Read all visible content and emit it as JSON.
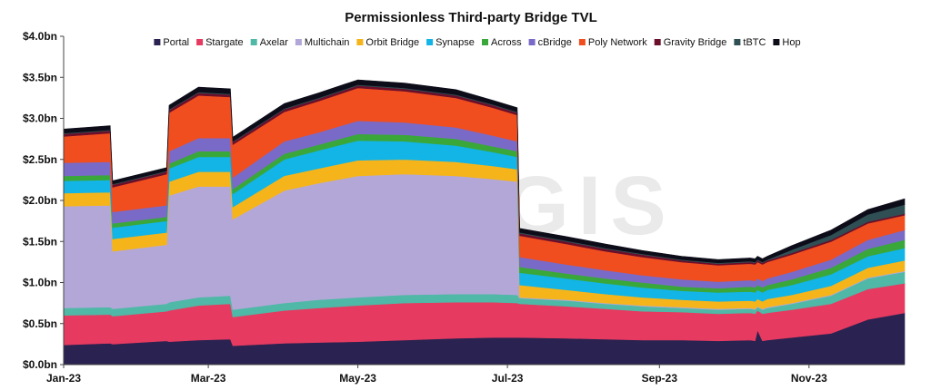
{
  "chart_data": {
    "type": "area",
    "stacked": true,
    "title": "Permissionless Third-party Bridge TVL",
    "xlabel": "",
    "ylabel": "",
    "watermark": "CREGIS",
    "ylim": [
      0,
      4.0
    ],
    "yticks": [
      {
        "value": 0.0,
        "label": "$0.0bn"
      },
      {
        "value": 0.5,
        "label": "$0.5bn"
      },
      {
        "value": 1.0,
        "label": "$1.0bn"
      },
      {
        "value": 1.5,
        "label": "$1.5bn"
      },
      {
        "value": 2.0,
        "label": "$2.0bn"
      },
      {
        "value": 2.5,
        "label": "$2.5bn"
      },
      {
        "value": 3.0,
        "label": "$3.0bn"
      },
      {
        "value": 3.5,
        "label": "$3.5bn"
      },
      {
        "value": 4.0,
        "label": "$4.0bn"
      }
    ],
    "xticks": [
      {
        "x": "2023-01-01",
        "label": "Jan-23"
      },
      {
        "x": "2023-03-01",
        "label": "Mar-23"
      },
      {
        "x": "2023-05-01",
        "label": "May-23"
      },
      {
        "x": "2023-07-01",
        "label": "Jul-23"
      },
      {
        "x": "2023-09-01",
        "label": "Sep-23"
      },
      {
        "x": "2023-11-01",
        "label": "Nov-23"
      }
    ],
    "xlim": [
      "2023-01-01",
      "2023-12-10"
    ],
    "legend_position": "top",
    "grid": false,
    "x": [
      "2023-01-01",
      "2023-01-20",
      "2023-01-21",
      "2023-02-12",
      "2023-02-13",
      "2023-02-25",
      "2023-03-10",
      "2023-03-11",
      "2023-04-01",
      "2023-04-15",
      "2023-05-01",
      "2023-05-20",
      "2023-06-10",
      "2023-06-25",
      "2023-07-05",
      "2023-07-06",
      "2023-07-25",
      "2023-08-10",
      "2023-08-25",
      "2023-09-10",
      "2023-09-25",
      "2023-10-08",
      "2023-10-10",
      "2023-10-11",
      "2023-10-13",
      "2023-10-15",
      "2023-10-25",
      "2023-11-10",
      "2023-11-25",
      "2023-12-10"
    ],
    "series": [
      {
        "name": "Portal",
        "color": "#2a2250",
        "values": [
          0.24,
          0.26,
          0.25,
          0.29,
          0.28,
          0.3,
          0.31,
          0.23,
          0.26,
          0.27,
          0.28,
          0.3,
          0.32,
          0.33,
          0.33,
          0.33,
          0.32,
          0.31,
          0.3,
          0.3,
          0.29,
          0.3,
          0.29,
          0.42,
          0.29,
          0.3,
          0.33,
          0.38,
          0.55,
          0.63
        ]
      },
      {
        "name": "Stargate",
        "color": "#e63a60",
        "values": [
          0.36,
          0.35,
          0.34,
          0.36,
          0.38,
          0.42,
          0.43,
          0.35,
          0.4,
          0.42,
          0.44,
          0.45,
          0.44,
          0.43,
          0.42,
          0.41,
          0.39,
          0.37,
          0.35,
          0.34,
          0.33,
          0.33,
          0.33,
          0.24,
          0.33,
          0.33,
          0.34,
          0.36,
          0.37,
          0.36
        ]
      },
      {
        "name": "Axelar",
        "color": "#4fb8a6",
        "values": [
          0.09,
          0.09,
          0.09,
          0.09,
          0.1,
          0.1,
          0.1,
          0.09,
          0.09,
          0.1,
          0.1,
          0.1,
          0.1,
          0.1,
          0.1,
          0.07,
          0.07,
          0.06,
          0.06,
          0.05,
          0.05,
          0.05,
          0.05,
          0.04,
          0.05,
          0.06,
          0.07,
          0.1,
          0.13,
          0.14
        ]
      },
      {
        "name": "Multichain",
        "color": "#b3a7d8",
        "values": [
          1.24,
          1.24,
          0.7,
          0.72,
          1.3,
          1.35,
          1.33,
          1.1,
          1.37,
          1.42,
          1.48,
          1.47,
          1.44,
          1.4,
          1.38,
          0.01,
          0.01,
          0.01,
          0.01,
          0.01,
          0.01,
          0.01,
          0.01,
          0.01,
          0.01,
          0.01,
          0.01,
          0.01,
          0.01,
          0.01
        ]
      },
      {
        "name": "Orbit Bridge",
        "color": "#f5b51a",
        "values": [
          0.16,
          0.16,
          0.15,
          0.15,
          0.17,
          0.18,
          0.18,
          0.15,
          0.18,
          0.18,
          0.19,
          0.18,
          0.17,
          0.16,
          0.15,
          0.15,
          0.12,
          0.11,
          0.1,
          0.09,
          0.09,
          0.09,
          0.09,
          0.09,
          0.09,
          0.1,
          0.1,
          0.11,
          0.12,
          0.13
        ]
      },
      {
        "name": "Synapse",
        "color": "#13b4e6",
        "values": [
          0.15,
          0.15,
          0.14,
          0.14,
          0.16,
          0.18,
          0.18,
          0.16,
          0.2,
          0.22,
          0.24,
          0.22,
          0.2,
          0.17,
          0.15,
          0.15,
          0.14,
          0.13,
          0.12,
          0.11,
          0.11,
          0.11,
          0.11,
          0.11,
          0.11,
          0.11,
          0.12,
          0.14,
          0.14,
          0.15
        ]
      },
      {
        "name": "Across",
        "color": "#3aa73a",
        "values": [
          0.06,
          0.06,
          0.05,
          0.05,
          0.06,
          0.07,
          0.07,
          0.06,
          0.07,
          0.07,
          0.08,
          0.08,
          0.08,
          0.07,
          0.07,
          0.07,
          0.06,
          0.06,
          0.06,
          0.05,
          0.05,
          0.06,
          0.06,
          0.06,
          0.06,
          0.06,
          0.07,
          0.08,
          0.09,
          0.1
        ]
      },
      {
        "name": "cBridge",
        "color": "#7a6ac8",
        "values": [
          0.16,
          0.16,
          0.14,
          0.14,
          0.15,
          0.16,
          0.16,
          0.14,
          0.15,
          0.15,
          0.16,
          0.15,
          0.14,
          0.13,
          0.12,
          0.12,
          0.11,
          0.1,
          0.09,
          0.09,
          0.08,
          0.08,
          0.08,
          0.08,
          0.08,
          0.08,
          0.09,
          0.1,
          0.11,
          0.12
        ]
      },
      {
        "name": "Poly Network",
        "color": "#f04e1f",
        "values": [
          0.32,
          0.35,
          0.3,
          0.38,
          0.47,
          0.52,
          0.5,
          0.4,
          0.36,
          0.38,
          0.4,
          0.38,
          0.36,
          0.34,
          0.32,
          0.26,
          0.25,
          0.23,
          0.22,
          0.21,
          0.2,
          0.2,
          0.2,
          0.2,
          0.2,
          0.2,
          0.21,
          0.22,
          0.2,
          0.18
        ]
      },
      {
        "name": "Gravity Bridge",
        "color": "#6b0f2a",
        "values": [
          0.03,
          0.03,
          0.03,
          0.03,
          0.03,
          0.03,
          0.03,
          0.03,
          0.03,
          0.03,
          0.03,
          0.03,
          0.03,
          0.03,
          0.03,
          0.03,
          0.03,
          0.03,
          0.03,
          0.02,
          0.02,
          0.02,
          0.02,
          0.02,
          0.02,
          0.02,
          0.02,
          0.02,
          0.02,
          0.02
        ]
      },
      {
        "name": "tBTC",
        "color": "#2f4f55",
        "values": [
          0.01,
          0.01,
          0.01,
          0.01,
          0.01,
          0.01,
          0.01,
          0.01,
          0.01,
          0.01,
          0.01,
          0.01,
          0.01,
          0.01,
          0.01,
          0.01,
          0.01,
          0.01,
          0.01,
          0.01,
          0.01,
          0.01,
          0.01,
          0.01,
          0.01,
          0.01,
          0.04,
          0.06,
          0.09,
          0.11
        ]
      },
      {
        "name": "Hop",
        "color": "#0d0d1a",
        "values": [
          0.05,
          0.05,
          0.04,
          0.04,
          0.05,
          0.06,
          0.06,
          0.05,
          0.06,
          0.06,
          0.06,
          0.06,
          0.06,
          0.05,
          0.05,
          0.05,
          0.05,
          0.05,
          0.04,
          0.04,
          0.04,
          0.04,
          0.04,
          0.04,
          0.04,
          0.04,
          0.05,
          0.06,
          0.06,
          0.07
        ]
      }
    ]
  }
}
